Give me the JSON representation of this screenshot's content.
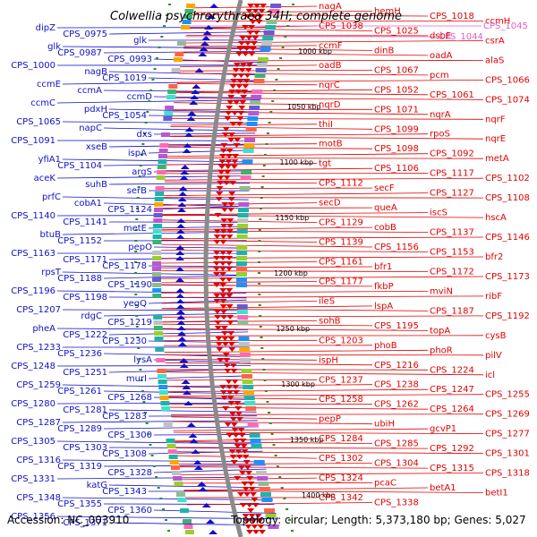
{
  "title": "Colwellia psychrerythraea 34H, complete genome",
  "footer": {
    "accession": "Accession: NC_003910",
    "info": "Topology: circular; Length: 5,373,180 bp; Genes: 5,027"
  },
  "ticks": [
    "1000 kbp",
    "1050 kbp",
    "1100 kbp",
    "1150 kbp",
    "1200 kbp",
    "1250 kbp",
    "1300 kbp",
    "1350 kbp",
    "1400 kbp"
  ],
  "left_labels": [
    "dipZ",
    "CPS_0975",
    "glk",
    "glk",
    "CPS_0987",
    "CPS_0993",
    "CPS_1000",
    "nagB",
    "CPS_1019",
    "ccmE",
    "ccmA",
    "ccmD",
    "ccmC",
    "pdxH",
    "CPS_1054",
    "CPS_1065",
    "napC",
    "dxs",
    "CPS_1091",
    "xseB",
    "ispA",
    "yfiA1",
    "CPS_1104",
    "argS",
    "aceK",
    "suhB",
    "serB",
    "prfC",
    "cobA1",
    "CPS_1124",
    "CPS_1140",
    "CPS_1141",
    "metE",
    "btuB",
    "CPS_1152",
    "pepO",
    "CPS_1163",
    "CPS_1171",
    "CPS_1178",
    "rpsT",
    "CPS_1188",
    "CPS_1190",
    "CPS_1196",
    "CPS_1198",
    "yegQ",
    "CPS_1207",
    "rdgC",
    "CPS_1219",
    "pheA",
    "CPS_1222",
    "CPS_1230",
    "CPS_1233",
    "CPS_1236",
    "lysA",
    "CPS_1248",
    "CPS_1251",
    "murI",
    "CPS_1259",
    "CPS_1261",
    "CPS_1268",
    "CPS_1280",
    "CPS_1281",
    "CPS_1283",
    "CPS_1287",
    "CPS_1289",
    "CPS_1300",
    "CPS_1305",
    "CPS_1303",
    "CPS_1308",
    "CPS_1316",
    "CPS_1319",
    "CPS_1328",
    "CPS_1331",
    "katG",
    "CPS_1343",
    "CPS_1348",
    "CPS_1355",
    "CPS_1360",
    "CPS_1356",
    "CPS_1371"
  ],
  "right_labels": [
    "nagA",
    "hemH",
    "CPS_1018",
    "ccmH",
    "CPS_1038",
    "CPS_1025",
    "dsbE",
    "csrA",
    "ccmF",
    "dinB",
    "oadA",
    "alaS",
    "oadB",
    "CPS_1067",
    "pcm",
    "CPS_1066",
    "nqrC",
    "CPS_1052",
    "CPS_1061",
    "CPS_1074",
    "nqrD",
    "CPS_1071",
    "nqrA",
    "nqrF",
    "thiI",
    "CPS_1099",
    "rpoS",
    "nqrE",
    "motB",
    "CPS_1098",
    "CPS_1092",
    "metA",
    "tgt",
    "CPS_1106",
    "CPS_1117",
    "CPS_1102",
    "CPS_1112",
    "secF",
    "CPS_1127",
    "CPS_1108",
    "secD",
    "queA",
    "iscS",
    "hscA",
    "CPS_1129",
    "cobB",
    "CPS_1137",
    "CPS_1146",
    "CPS_1139",
    "CPS_1156",
    "CPS_1153",
    "bfr2",
    "CPS_1161",
    "bfr1",
    "CPS_1172",
    "CPS_1173",
    "CPS_1177",
    "fkbP",
    "mviN",
    "ribF",
    "ileS",
    "lspA",
    "CPS_1187",
    "CPS_1192",
    "sohB",
    "CPS_1195",
    "topA",
    "cysB",
    "CPS_1203",
    "phoB",
    "phoR",
    "pilV",
    "ispH",
    "CPS_1216",
    "CPS_1224",
    "icl",
    "CPS_1237",
    "CPS_1238",
    "CPS_1247",
    "CPS_1255",
    "CPS_1258",
    "CPS_1262",
    "CPS_1264",
    "CPS_1269",
    "pepP",
    "ubiH",
    "gcvP1",
    "CPS_1277",
    "CPS_1284",
    "CPS_1285",
    "CPS_1292",
    "CPS_1301",
    "CPS_1302",
    "CPS_1304",
    "CPS_1315",
    "CPS_1318",
    "CPS_1324",
    "pcaC",
    "betA1",
    "betI1",
    "CPS_1342",
    "CPS_1338"
  ],
  "pink_labels": [
    "CPS_1045",
    "CPS_1044"
  ],
  "colors": {
    "forward": "#e00000",
    "reverse": "#1010c8",
    "backbone": "#8a8a8a",
    "gc": "#2e8b2e",
    "pink": "#e060c0"
  }
}
